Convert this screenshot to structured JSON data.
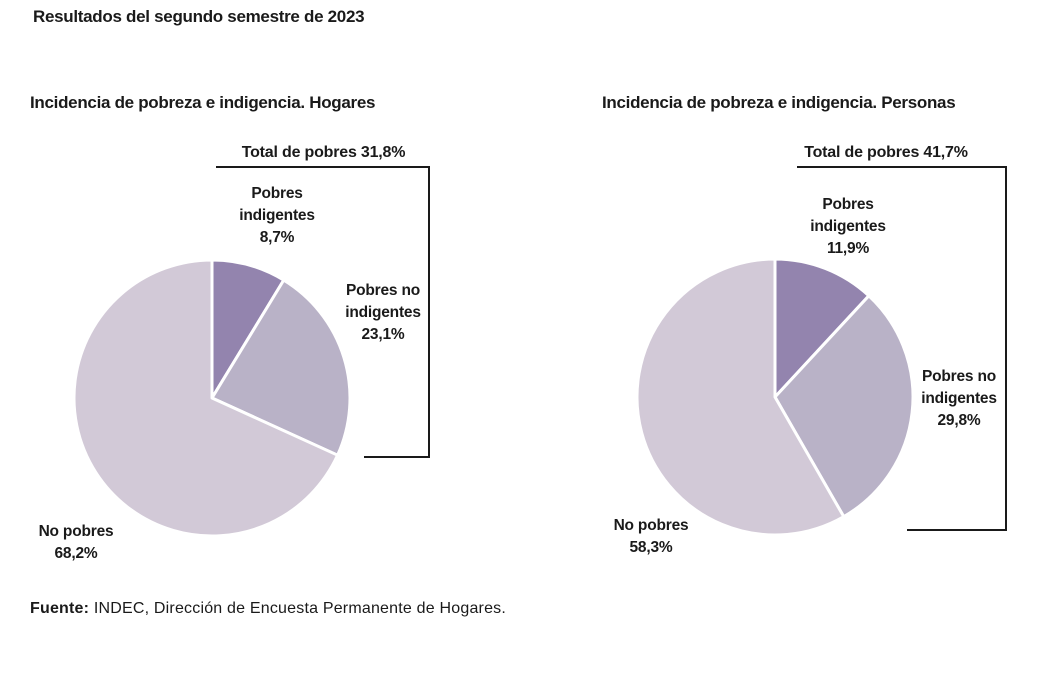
{
  "page": {
    "title": "Resultados del segundo semestre de 2023",
    "background_color": "#ffffff",
    "text_color": "#1a1a1a"
  },
  "source_note": {
    "label": "Fuente:",
    "text": " INDEC, Dirección de Encuesta Permanente de Hogares."
  },
  "chart_data": [
    {
      "type": "pie",
      "title": "Incidencia de pobreza e indigencia. Hogares",
      "unit": "percent",
      "start_angle_deg": 0,
      "direction": "clockwise",
      "grid": false,
      "legend": "none (direct slice labels with callout bracket)",
      "bracket_label": "Total de pobres 31,8%",
      "bracket_total_value": 31.8,
      "slices": [
        {
          "label": "Pobres indigentes",
          "value": 8.7,
          "display": "8,7%",
          "color": "#9384ae"
        },
        {
          "label": "Pobres no indigentes",
          "value": 23.1,
          "display": "23,1%",
          "color": "#b9b2c7"
        },
        {
          "label": "No pobres",
          "value": 68.2,
          "display": "68,2%",
          "color": "#d2c9d7"
        }
      ]
    },
    {
      "type": "pie",
      "title": "Incidencia de pobreza e indigencia. Personas",
      "unit": "percent",
      "start_angle_deg": 0,
      "direction": "clockwise",
      "grid": false,
      "legend": "none (direct slice labels with callout bracket)",
      "bracket_label": "Total de pobres 41,7%",
      "bracket_total_value": 41.7,
      "slices": [
        {
          "label": "Pobres indigentes",
          "value": 11.9,
          "display": "11,9%",
          "color": "#9384ae"
        },
        {
          "label": "Pobres no indigentes",
          "value": 29.8,
          "display": "29,8%",
          "color": "#b9b2c7"
        },
        {
          "label": "No pobres",
          "value": 58.3,
          "display": "58,3%",
          "color": "#d2c9d7"
        }
      ]
    }
  ]
}
